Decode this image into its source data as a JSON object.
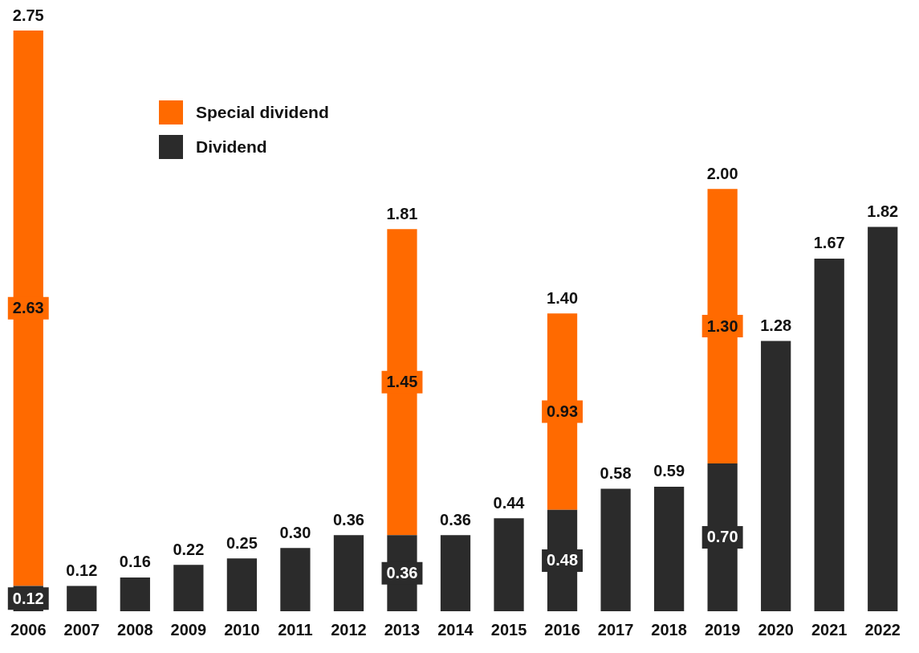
{
  "chart_data": {
    "type": "bar",
    "stacked": true,
    "categories": [
      "2006",
      "2007",
      "2008",
      "2009",
      "2010",
      "2011",
      "2012",
      "2013",
      "2014",
      "2015",
      "2016",
      "2017",
      "2018",
      "2019",
      "2020",
      "2021",
      "2022"
    ],
    "series": [
      {
        "name": "Dividend",
        "color": "#2b2b2b",
        "values": [
          0.12,
          0.12,
          0.16,
          0.22,
          0.25,
          0.3,
          0.36,
          0.36,
          0.36,
          0.44,
          0.48,
          0.58,
          0.59,
          0.7,
          1.28,
          1.67,
          1.82
        ],
        "value_labels": [
          "0.12",
          null,
          null,
          null,
          null,
          null,
          null,
          "0.36",
          null,
          null,
          "0.48",
          null,
          null,
          "0.70",
          null,
          null,
          null
        ]
      },
      {
        "name": "Special dividend",
        "color": "#ff6a00",
        "values": [
          2.63,
          null,
          null,
          null,
          null,
          null,
          null,
          1.45,
          null,
          null,
          0.93,
          null,
          null,
          1.3,
          null,
          null,
          null
        ],
        "value_labels": [
          "2.63",
          null,
          null,
          null,
          null,
          null,
          null,
          "1.45",
          null,
          null,
          "0.93",
          null,
          null,
          "1.30",
          null,
          null,
          null
        ]
      }
    ],
    "totals": [
      "2.75",
      "0.12",
      "0.16",
      "0.22",
      "0.25",
      "0.30",
      "0.36",
      "1.81",
      "0.36",
      "0.44",
      "1.40",
      "0.58",
      "0.59",
      "2.00",
      "1.28",
      "1.67",
      "1.82"
    ],
    "ylim": [
      0,
      2.75
    ],
    "tick_labels": "x",
    "grid": false,
    "legend": "top left"
  }
}
